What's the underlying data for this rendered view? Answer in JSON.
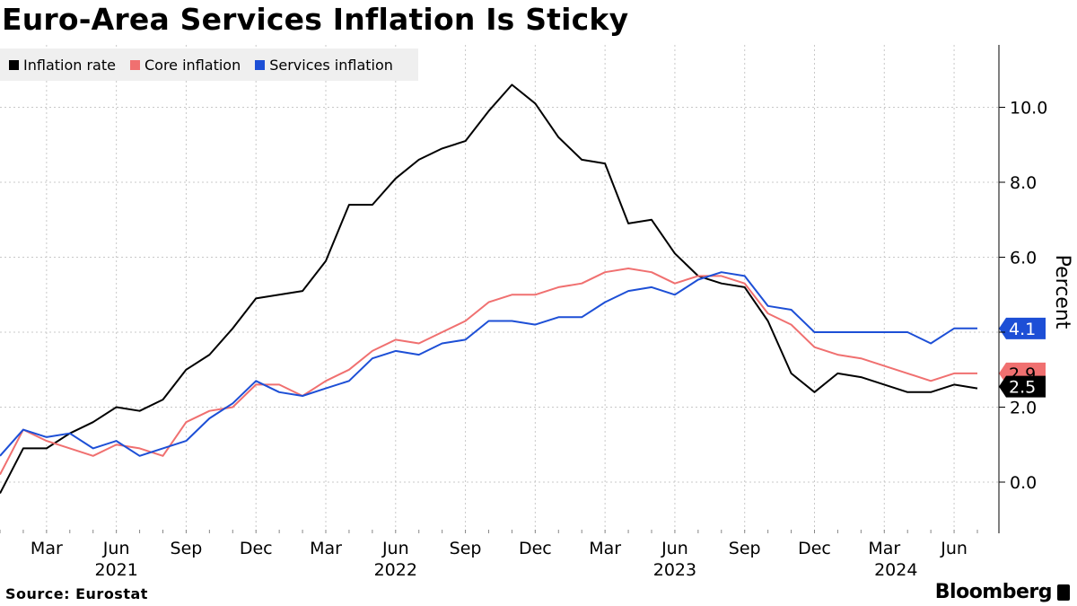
{
  "chart_data": {
    "type": "line",
    "title": "Euro-Area Services Inflation Is Sticky",
    "ylabel": "Percent",
    "ylim": [
      -1.3,
      11.7
    ],
    "yticks": [
      0,
      2,
      4,
      6,
      8,
      10
    ],
    "ytick_labels": [
      "0.0",
      "2.0",
      "",
      "6.0",
      "8.0",
      "10.0"
    ],
    "grid": true,
    "legend_position": "top-left",
    "x_month_labels": [
      {
        "index": 2,
        "label": "Mar"
      },
      {
        "index": 5,
        "label": "Jun"
      },
      {
        "index": 8,
        "label": "Sep"
      },
      {
        "index": 11,
        "label": "Dec"
      },
      {
        "index": 14,
        "label": "Mar"
      },
      {
        "index": 17,
        "label": "Jun"
      },
      {
        "index": 20,
        "label": "Sep"
      },
      {
        "index": 23,
        "label": "Dec"
      },
      {
        "index": 26,
        "label": "Mar"
      },
      {
        "index": 29,
        "label": "Jun"
      },
      {
        "index": 32,
        "label": "Sep"
      },
      {
        "index": 35,
        "label": "Dec"
      },
      {
        "index": 38,
        "label": "Mar"
      },
      {
        "index": 41,
        "label": "Jun"
      }
    ],
    "x_year_labels": [
      {
        "index": 5,
        "label": "2021"
      },
      {
        "index": 17,
        "label": "2022"
      },
      {
        "index": 29,
        "label": "2023"
      },
      {
        "index": 38.5,
        "label": "2024"
      }
    ],
    "series": [
      {
        "name": "Inflation rate",
        "color": "#000000",
        "end_label": "2.5",
        "values": [
          -0.3,
          0.9,
          0.9,
          1.3,
          1.6,
          2.0,
          1.9,
          2.2,
          3.0,
          3.4,
          4.1,
          4.9,
          5.0,
          5.1,
          5.9,
          7.4,
          7.4,
          8.1,
          8.6,
          8.9,
          9.1,
          9.9,
          10.6,
          10.1,
          9.2,
          8.6,
          8.5,
          6.9,
          7.0,
          6.1,
          5.5,
          5.3,
          5.2,
          4.3,
          2.9,
          2.4,
          2.9,
          2.8,
          2.6,
          2.4,
          2.4,
          2.6,
          2.5
        ]
      },
      {
        "name": "Core inflation",
        "color": "#f07070",
        "end_label": "2.9",
        "values": [
          0.2,
          1.4,
          1.1,
          0.9,
          0.7,
          1.0,
          0.9,
          0.7,
          1.6,
          1.9,
          2.0,
          2.6,
          2.6,
          2.3,
          2.7,
          3.0,
          3.5,
          3.8,
          3.7,
          4.0,
          4.3,
          4.8,
          5.0,
          5.0,
          5.2,
          5.3,
          5.6,
          5.7,
          5.6,
          5.3,
          5.5,
          5.5,
          5.3,
          4.5,
          4.2,
          3.6,
          3.4,
          3.3,
          3.1,
          2.9,
          2.7,
          2.9,
          2.9
        ]
      },
      {
        "name": "Services inflation",
        "color": "#1d4fd6",
        "end_label": "4.1",
        "values": [
          0.7,
          1.4,
          1.2,
          1.3,
          0.9,
          1.1,
          0.7,
          0.9,
          1.1,
          1.7,
          2.1,
          2.7,
          2.4,
          2.3,
          2.5,
          2.7,
          3.3,
          3.5,
          3.4,
          3.7,
          3.8,
          4.3,
          4.3,
          4.2,
          4.4,
          4.4,
          4.8,
          5.1,
          5.2,
          5.0,
          5.4,
          5.6,
          5.5,
          4.7,
          4.6,
          4.0,
          4.0,
          4.0,
          4.0,
          4.0,
          3.7,
          4.1,
          4.1
        ]
      }
    ]
  },
  "source": "Source: Eurostat",
  "brand": "Bloomberg"
}
